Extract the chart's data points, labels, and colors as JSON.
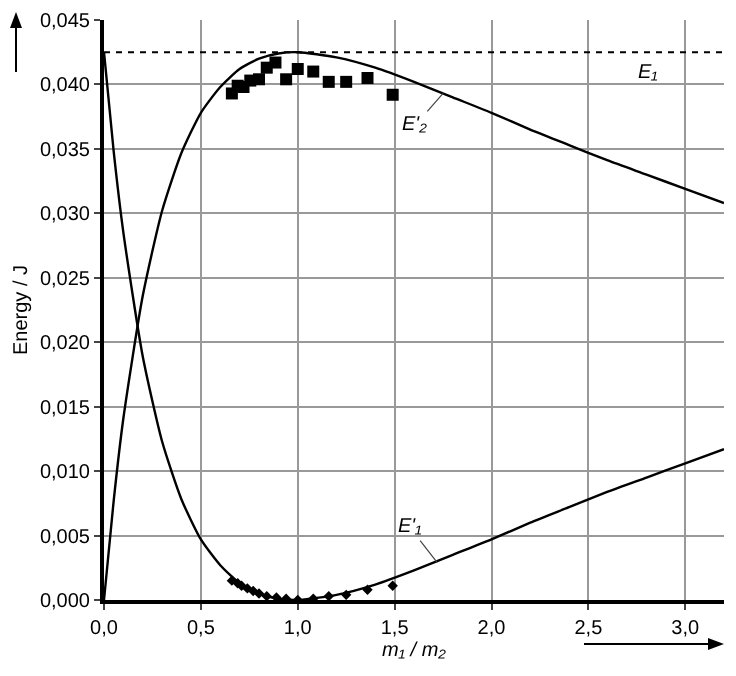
{
  "chart_data": {
    "type": "line",
    "xlabel": "m₁ / m₂",
    "ylabel": "Energy / J",
    "xlim": [
      0,
      3.2
    ],
    "ylim": [
      0,
      0.045
    ],
    "xticks": [
      {
        "value": 0,
        "label": "0,0"
      },
      {
        "value": 0.5,
        "label": "0,5"
      },
      {
        "value": 1,
        "label": "1,0"
      },
      {
        "value": 1.5,
        "label": "1,5"
      },
      {
        "value": 2,
        "label": "2,0"
      },
      {
        "value": 2.5,
        "label": "2,5"
      },
      {
        "value": 3,
        "label": "3,0"
      }
    ],
    "yticks": [
      {
        "value": 0,
        "label": "0,000"
      },
      {
        "value": 0.005,
        "label": "0,005"
      },
      {
        "value": 0.01,
        "label": "0,010"
      },
      {
        "value": 0.015,
        "label": "0,015"
      },
      {
        "value": 0.02,
        "label": "0,020"
      },
      {
        "value": 0.025,
        "label": "0,025"
      },
      {
        "value": 0.03,
        "label": "0,030"
      },
      {
        "value": 0.035,
        "label": "0,035"
      },
      {
        "value": 0.04,
        "label": "0,040"
      },
      {
        "value": 0.045,
        "label": "0,045"
      }
    ],
    "grid": true,
    "series": [
      {
        "color": "#000000",
        "marker": "none",
        "line_style": "solid",
        "x": [
          0,
          0.05,
          0.1,
          0.2,
          0.3,
          0.4,
          0.5,
          0.6,
          0.7,
          0.8,
          0.9,
          1,
          1.2,
          1.4,
          1.6,
          1.8,
          2,
          2.2,
          2.4,
          2.6,
          2.8,
          3,
          3.2
        ],
        "values": [
          0,
          0.0077,
          0.0141,
          0.0236,
          0.0302,
          0.0347,
          0.0378,
          0.0398,
          0.0412,
          0.042,
          0.0424,
          0.0425,
          0.0421,
          0.0413,
          0.0402,
          0.039,
          0.0378,
          0.0365,
          0.0353,
          0.0341,
          0.033,
          0.0319,
          0.0308
        ]
      },
      {
        "color": "#000000",
        "marker": "none",
        "line_style": "solid",
        "x": [
          0,
          0.05,
          0.1,
          0.2,
          0.3,
          0.4,
          0.5,
          0.6,
          0.7,
          0.8,
          0.9,
          1,
          1.2,
          1.4,
          1.6,
          1.8,
          2,
          2.2,
          2.4,
          2.6,
          2.8,
          3,
          3.2
        ],
        "values": [
          0.0425,
          0.0348,
          0.0285,
          0.0189,
          0.0123,
          0.0078,
          0.0047,
          0.0027,
          0.0013,
          0.0005,
          0.0001,
          0,
          0.0004,
          0.0012,
          0.0023,
          0.0035,
          0.0047,
          0.006,
          0.0072,
          0.0084,
          0.0095,
          0.0106,
          0.0117
        ]
      },
      {
        "type": "scatter",
        "color": "#000000",
        "marker": "square",
        "x": [
          0.66,
          0.69,
          0.72,
          0.755,
          0.8,
          0.84,
          0.885,
          0.94,
          1,
          1.08,
          1.16,
          1.25,
          1.36,
          1.49
        ],
        "values": [
          0.0393,
          0.0399,
          0.0398,
          0.0403,
          0.0404,
          0.0413,
          0.0417,
          0.0404,
          0.0412,
          0.041,
          0.0402,
          0.0402,
          0.0405,
          0.0392
        ]
      },
      {
        "type": "scatter",
        "color": "#000000",
        "marker": "diamond",
        "x": [
          0.66,
          0.69,
          0.71,
          0.74,
          0.77,
          0.8,
          0.84,
          0.89,
          0.94,
          1,
          1.08,
          1.16,
          1.25,
          1.36,
          1.49
        ],
        "values": [
          0.0015,
          0.0013,
          0.0011,
          0.0009,
          0.0007,
          0.0005,
          0.0003,
          0.0002,
          0.0001,
          0,
          0.0001,
          0.0003,
          0.0004,
          0.0008,
          0.0011
        ]
      }
    ],
    "ref_lines": [
      {
        "axis": "y",
        "value": 0.0425,
        "label": "E₁",
        "color": "#000000",
        "line_style": "dotted"
      }
    ],
    "annotations": [
      {
        "text": "E'₂",
        "x": 1.75,
        "y": 0.0393
      },
      {
        "text": "E'₁",
        "x": 1.72,
        "y": 0.0029
      }
    ]
  }
}
